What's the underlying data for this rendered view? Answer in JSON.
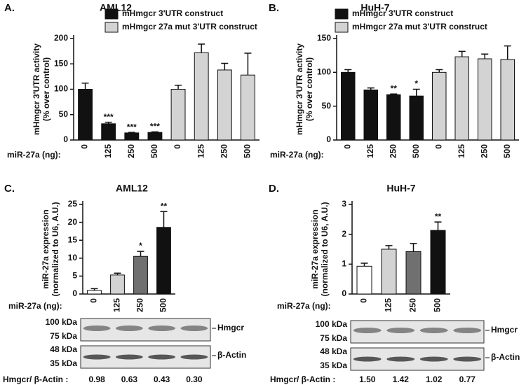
{
  "chart_data": [
    {
      "type": "bar",
      "panel": "A.",
      "title": "AML12",
      "ylabel": [
        "mHmgcr 3'UTR activity",
        "(% over control)"
      ],
      "xlabel": "miR-27a (ng):",
      "categories": [
        "0",
        "125",
        "250",
        "500",
        "0",
        "125",
        "250",
        "500"
      ],
      "series": [
        {
          "name": "mHmgcr 3'UTR construct",
          "color": "#111111",
          "values": [
            100,
            32,
            14,
            15,
            null,
            null,
            null,
            null
          ],
          "errors": [
            12,
            3,
            1,
            1,
            null,
            null,
            null,
            null
          ],
          "annotations": [
            null,
            "***",
            "***",
            "***",
            null,
            null,
            null,
            null
          ]
        },
        {
          "name": "mHmgcr 27a mut 3'UTR construct",
          "color": "#d3d3d3",
          "values": [
            null,
            null,
            null,
            null,
            100,
            172,
            138,
            128
          ],
          "errors": [
            null,
            null,
            null,
            null,
            8,
            17,
            13,
            43
          ],
          "annotations": [
            null,
            null,
            null,
            null,
            null,
            null,
            null,
            null
          ]
        }
      ],
      "ylim": [
        0,
        200
      ],
      "yticks": [
        0,
        50,
        100,
        150,
        200
      ]
    },
    {
      "type": "bar",
      "panel": "B.",
      "title": "HuH-7",
      "ylabel": [
        "mHmgcr 3'UTR activity",
        "(% over control)"
      ],
      "xlabel": "miR-27a (ng):",
      "categories": [
        "0",
        "125",
        "250",
        "500",
        "0",
        "125",
        "250",
        "500"
      ],
      "series": [
        {
          "name": "mHmgcr 3'UTR construct",
          "color": "#111111",
          "values": [
            100,
            74,
            67,
            65,
            null,
            null,
            null,
            null
          ],
          "errors": [
            4,
            3,
            1,
            10,
            null,
            null,
            null,
            null
          ],
          "annotations": [
            null,
            null,
            "**",
            "*",
            null,
            null,
            null,
            null
          ]
        },
        {
          "name": "mHmgcr 27a mut 3'UTR construct",
          "color": "#d3d3d3",
          "values": [
            null,
            null,
            null,
            null,
            100,
            123,
            120,
            119
          ],
          "errors": [
            null,
            null,
            null,
            null,
            4,
            8,
            7,
            20
          ],
          "annotations": [
            null,
            null,
            null,
            null,
            null,
            null,
            null,
            null
          ]
        }
      ],
      "ylim": [
        0,
        150
      ],
      "yticks": [
        0,
        50,
        100,
        150
      ]
    },
    {
      "type": "bar",
      "panel": "C.",
      "title": "AML12",
      "ylabel": [
        "miR-27a expression",
        "(normalized to U6, A.U.)"
      ],
      "xlabel": "miR-27a (ng):",
      "categories": [
        "0",
        "125",
        "250",
        "500"
      ],
      "series": [
        {
          "colors": [
            "#ffffff",
            "#d3d3d3",
            "#707070",
            "#111111"
          ],
          "values": [
            1,
            5.3,
            10.5,
            18.6
          ],
          "errors": [
            0.5,
            0.5,
            1.4,
            4.4
          ],
          "annotations": [
            null,
            null,
            "*",
            "**"
          ]
        }
      ],
      "ylim": [
        0,
        25
      ],
      "yticks": [
        0,
        5,
        10,
        15,
        20,
        25
      ]
    },
    {
      "type": "bar",
      "panel": "D.",
      "title": "HuH-7",
      "ylabel": [
        "miR-27a expression",
        "(normalized to U6, A.U.)"
      ],
      "xlabel": "miR-27a (ng):",
      "categories": [
        "0",
        "125",
        "250",
        "500"
      ],
      "series": [
        {
          "colors": [
            "#ffffff",
            "#d3d3d3",
            "#707070",
            "#111111"
          ],
          "values": [
            0.93,
            1.5,
            1.42,
            2.13
          ],
          "errors": [
            0.1,
            0.12,
            0.27,
            0.28
          ],
          "annotations": [
            null,
            null,
            null,
            "**"
          ]
        }
      ],
      "ylim": [
        0,
        3
      ],
      "yticks": [
        0,
        1,
        2,
        3
      ]
    }
  ],
  "blots": [
    {
      "ladder": [
        "100 kDa",
        "75 kDa",
        "48 kDa",
        "35 kDa"
      ],
      "bands": [
        "Hmgcr",
        "β-Actin"
      ],
      "ratio_label": "Hmgcr/ β-Actin :",
      "ratios": [
        "0.98",
        "0.63",
        "0.43",
        "0.30"
      ]
    },
    {
      "ladder": [
        "100 kDa",
        "75 kDa",
        "48 kDa",
        "35 kDa"
      ],
      "bands": [
        "Hmgcr",
        "β-Actin"
      ],
      "ratio_label": "Hmgcr/ β-Actin :",
      "ratios": [
        "1.50",
        "1.42",
        "1.02",
        "0.77"
      ]
    }
  ]
}
